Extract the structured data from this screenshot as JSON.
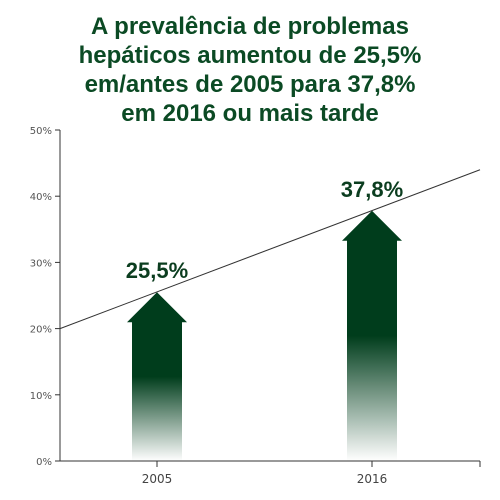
{
  "title_lines": [
    "A prevalência de problemas",
    "hepáticos aumentou de 25,5%",
    "em/antes de 2005 para 37,8%",
    "em 2016 ou mais tarde"
  ],
  "colors": {
    "bar": "#003d1c",
    "title": "#0b4a24",
    "trend_line": "#333333",
    "axis": "#333333"
  },
  "chart_data": {
    "type": "bar",
    "title": "A prevalência de problemas hepáticos aumentou de 25,5% em/antes de 2005 para 37,8% em 2016 ou mais tarde",
    "categories": [
      "2005",
      "2016"
    ],
    "values": [
      25.5,
      37.8
    ],
    "data_labels": [
      "25,5%",
      "37,8%"
    ],
    "ylim": [
      0,
      50
    ],
    "yticks": [
      0,
      10,
      20,
      30,
      40,
      50
    ],
    "ytick_labels": [
      "0%",
      "10%",
      "20%",
      "30%",
      "40%",
      "50%"
    ],
    "xlabel": "",
    "ylabel": "",
    "grid": false,
    "trend_line": {
      "x": [
        "-",
        "-"
      ],
      "y": [
        20,
        44
      ]
    }
  }
}
